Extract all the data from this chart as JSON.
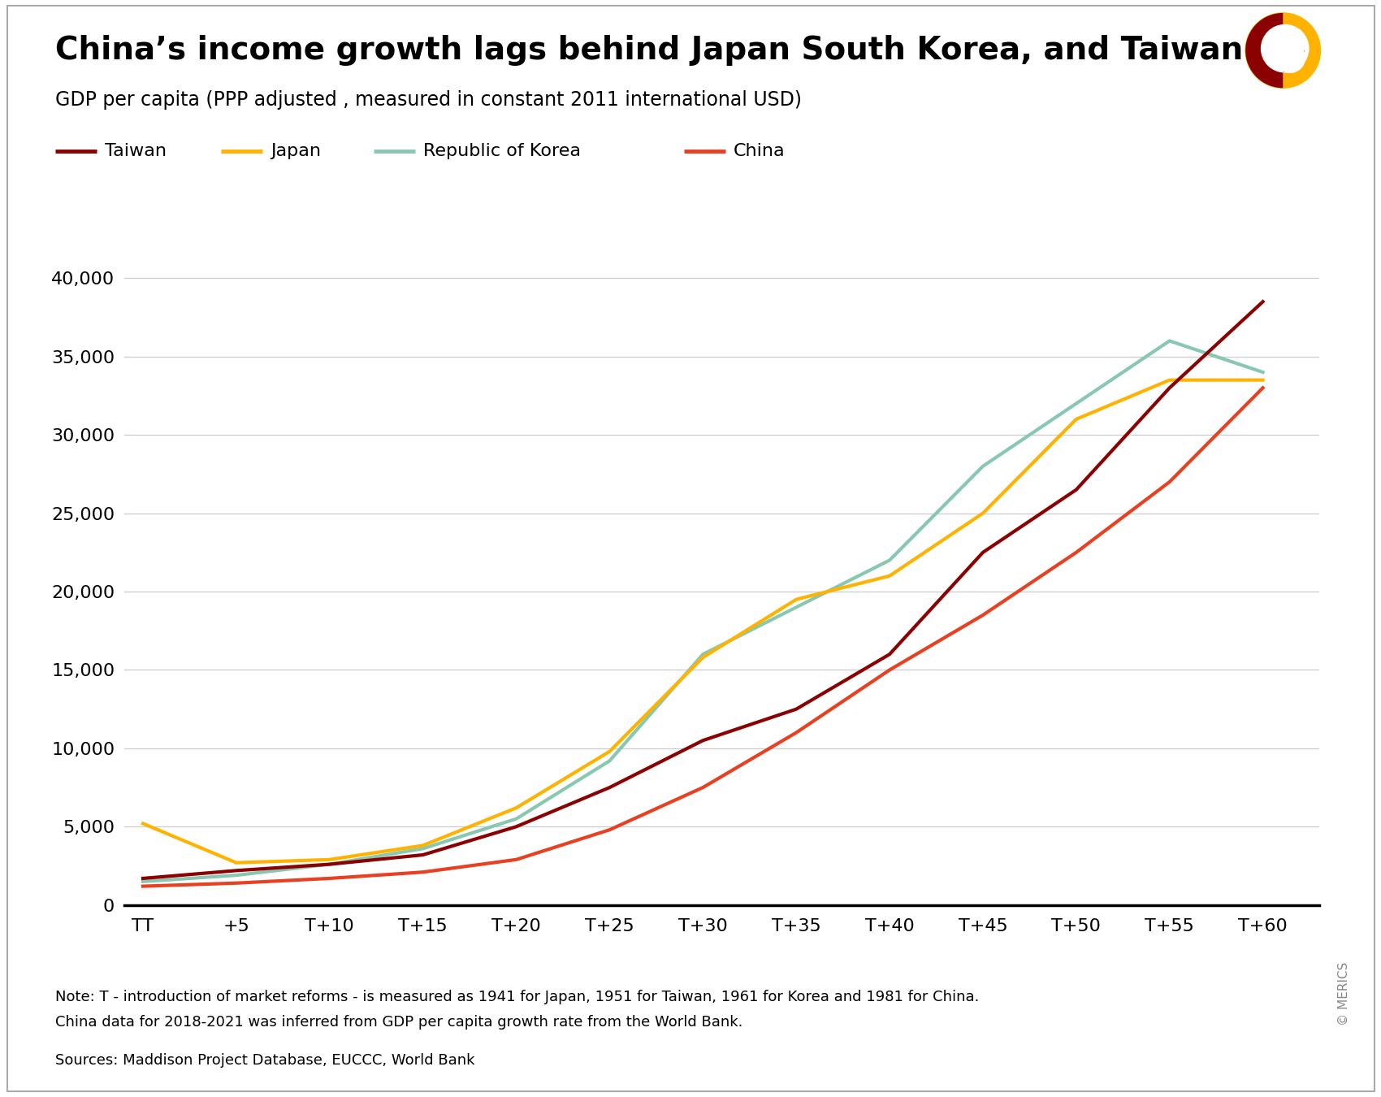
{
  "title": "China’s income growth lags behind Japan South Korea, and Taiwan",
  "subtitle": "GDP per capita (PPP adjusted , measured in constant 2011 international USD)",
  "x_labels": [
    "TT",
    "+5",
    "T+10",
    "T+15",
    "T+20",
    "T+25",
    "T+30",
    "T+35",
    "T+40",
    "T+45",
    "T+50",
    "T+55",
    "T+60"
  ],
  "x_values": [
    0,
    5,
    10,
    15,
    20,
    25,
    30,
    35,
    40,
    45,
    50,
    55,
    60
  ],
  "taiwan": [
    1700,
    2200,
    2600,
    3200,
    5000,
    7500,
    10500,
    12500,
    16000,
    22500,
    26500,
    33000,
    38500
  ],
  "japan": [
    5200,
    2700,
    2900,
    3800,
    6200,
    9800,
    15800,
    19500,
    21000,
    25000,
    31000,
    33500,
    33500
  ],
  "korea": [
    1500,
    1900,
    2600,
    3600,
    5500,
    9200,
    16000,
    19000,
    22000,
    28000,
    32000,
    36000,
    34000
  ],
  "china": [
    1200,
    1400,
    1700,
    2100,
    2900,
    4800,
    7500,
    11000,
    15000,
    18500,
    22500,
    27000,
    33000
  ],
  "taiwan_color": "#8B0000",
  "japan_color": "#FFB300",
  "korea_color": "#88C8B0",
  "china_color": "#E84020",
  "ylim": [
    0,
    42000
  ],
  "yticks": [
    0,
    5000,
    10000,
    15000,
    20000,
    25000,
    30000,
    35000,
    40000
  ],
  "note_line1": "Note: T - introduction of market reforms - is measured as 1941 for Japan, 1951 for Taiwan, 1961 for Korea and 1981 for China.",
  "note_line2": "China data for 2018-2021 was inferred from GDP per capita growth rate from the World Bank.",
  "sources": "Sources: Maddison Project Database, EUCCC, World Bank",
  "line_width": 3.0,
  "background_color": "#FFFFFF",
  "grid_color": "#CCCCCC",
  "border_color": "#AAAAAA"
}
